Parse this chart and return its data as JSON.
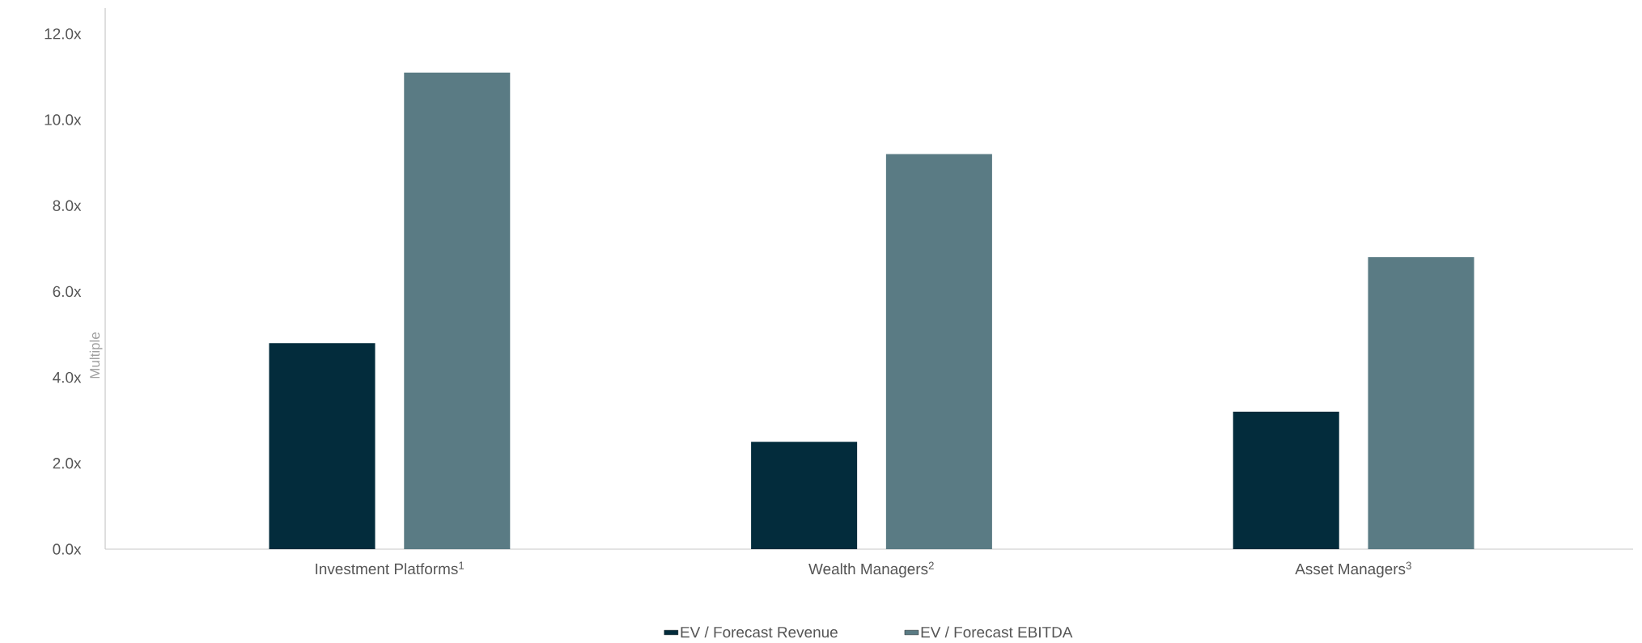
{
  "chart_data": {
    "type": "bar",
    "ylabel": "Multiple",
    "categories": [
      "Investment Platforms$^{1}$",
      "Wealth Managers$^{2}$",
      "Asset Managers$^{3}$"
    ],
    "series": [
      {
        "name": "EV / Forecast Revenue",
        "color": "#032c3c",
        "values": [
          4.8,
          2.5,
          3.2
        ]
      },
      {
        "name": "EV / Forecast EBITDA",
        "color": "#5a7b84",
        "values": [
          11.1,
          9.2,
          6.8
        ]
      }
    ],
    "ylim": [
      0,
      12.6
    ],
    "yticks": [
      {
        "value": 0,
        "label": "0.0x"
      },
      {
        "value": 2,
        "label": "2.0x"
      },
      {
        "value": 4,
        "label": "4.0x"
      },
      {
        "value": 6,
        "label": "6.0x"
      },
      {
        "value": 8,
        "label": "8.0x"
      },
      {
        "value": 10,
        "label": "10.0x"
      },
      {
        "value": 12,
        "label": "12.0x"
      }
    ],
    "grid": false,
    "legend": "bottom"
  }
}
